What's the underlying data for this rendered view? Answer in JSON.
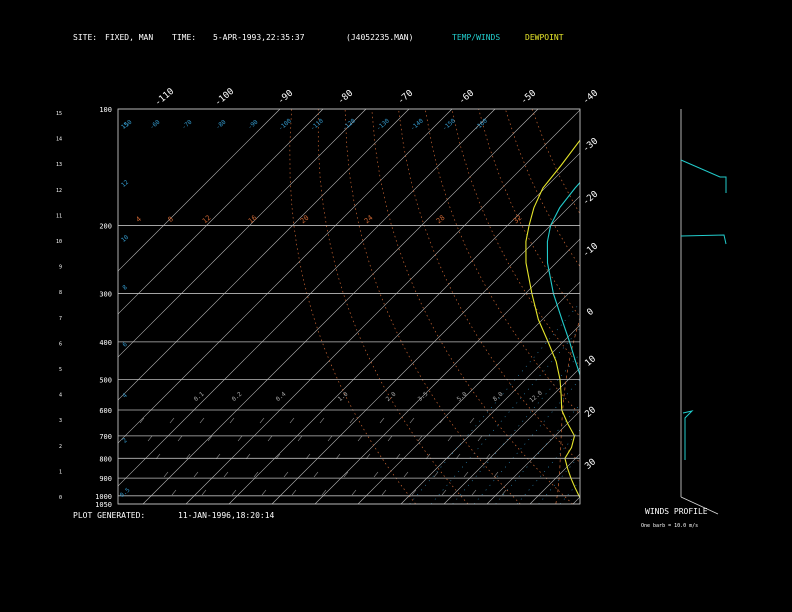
{
  "header": {
    "site_label": "SITE:",
    "site_value": "FIXED, MAN",
    "time_label": "TIME:",
    "time_value": "5-APR-1993,22:35:37",
    "file": "(J4052235.MAN)",
    "legend_temp": "TEMP/WINDS",
    "legend_dew": "DEWPOINT"
  },
  "footer": {
    "generated_label": "PLOT GENERATED:",
    "generated_value": "11-JAN-1996,18:20:14",
    "winds_title": "WINDS PROFILE",
    "winds_note": "One barb = 10.0 m/s"
  },
  "colors": {
    "temp": "#22cccc",
    "dew": "#e6e62a",
    "isobar": "#bbbbbb",
    "isotherm": "#bbbbbb",
    "dry_adiabat": "#cc6633",
    "moist_adiabat": "#cc6633",
    "mixing_ratio": "#3399cc",
    "wind": "#22cccc"
  },
  "chart_data": {
    "type": "line",
    "subtype": "skew-T log-P",
    "title": "",
    "pressure_ticks": [
      "100",
      "200",
      "300",
      "400",
      "500",
      "600",
      "700",
      "800",
      "900",
      "1000",
      "1050"
    ],
    "pressure_values": [
      100,
      200,
      300,
      400,
      500,
      600,
      700,
      800,
      900,
      1000,
      1050
    ],
    "height_ticks": [
      "0",
      "1",
      "2",
      "3",
      "4",
      "5",
      "6",
      "7",
      "8",
      "9",
      "10",
      "11",
      "12",
      "13",
      "14",
      "15"
    ],
    "temp_ticks_top": [
      "-110",
      "-100",
      "-90",
      "-80",
      "-70",
      "-60",
      "-50",
      "-40"
    ],
    "temp_ticks_right": [
      "-30",
      "-20",
      "-10",
      "0",
      "10",
      "20",
      "30"
    ],
    "temp_tick_values_top": [
      -110,
      -100,
      -90,
      -80,
      -70,
      -60,
      -50,
      -40
    ],
    "temp_tick_values_right": [
      -30,
      -20,
      -10,
      0,
      10,
      20,
      30
    ],
    "theta_labels": [
      "4",
      "8",
      "12",
      "16",
      "20",
      "24",
      "28",
      "32"
    ],
    "mixing_labels_top": [
      "-50",
      "-60",
      "-70",
      "-80",
      "-90",
      "-100",
      "-110",
      "-120",
      "-130",
      "-140",
      "-150",
      "-160"
    ],
    "mixing_labels_mid": [
      "0.1",
      "0.2",
      "0.4",
      "1.0",
      "2.0",
      "3.5",
      "5.0",
      "8.0",
      "12.0"
    ],
    "height_km_markers": [
      "15",
      "14",
      "12",
      "11",
      "10",
      "9",
      "8",
      "7",
      "6",
      "5",
      "4",
      "3",
      "2",
      "1",
      "0"
    ],
    "temperature": [
      {
        "p": 1040,
        "t": 18.0
      },
      {
        "p": 1000,
        "t": 15.5
      },
      {
        "p": 950,
        "t": 13.0
      },
      {
        "p": 900,
        "t": 10.5
      },
      {
        "p": 850,
        "t": 8.0
      },
      {
        "p": 800,
        "t": 5.0
      },
      {
        "p": 750,
        "t": 2.0
      },
      {
        "p": 700,
        "t": -1.0
      },
      {
        "p": 650,
        "t": -4.5
      },
      {
        "p": 600,
        "t": -8.0
      },
      {
        "p": 550,
        "t": -12.5
      },
      {
        "p": 500,
        "t": -17.0
      },
      {
        "p": 450,
        "t": -22.5
      },
      {
        "p": 400,
        "t": -28.5
      },
      {
        "p": 350,
        "t": -35.5
      },
      {
        "p": 300,
        "t": -43.5
      },
      {
        "p": 250,
        "t": -52.0
      },
      {
        "p": 220,
        "t": -57.0
      },
      {
        "p": 200,
        "t": -60.0
      },
      {
        "p": 180,
        "t": -62.0
      },
      {
        "p": 160,
        "t": -63.0
      },
      {
        "p": 140,
        "t": -63.5
      },
      {
        "p": 120,
        "t": -63.0
      },
      {
        "p": 105,
        "t": -63.0
      },
      {
        "p": 100,
        "t": -62.5
      }
    ],
    "dewpoint": [
      {
        "p": 1040,
        "t": 12.0
      },
      {
        "p": 1000,
        "t": 9.5
      },
      {
        "p": 950,
        "t": 6.5
      },
      {
        "p": 900,
        "t": 3.5
      },
      {
        "p": 850,
        "t": 0.5
      },
      {
        "p": 800,
        "t": -2.5
      },
      {
        "p": 750,
        "t": -3.5
      },
      {
        "p": 700,
        "t": -5.5
      },
      {
        "p": 650,
        "t": -10.0
      },
      {
        "p": 600,
        "t": -14.5
      },
      {
        "p": 550,
        "t": -18.0
      },
      {
        "p": 500,
        "t": -22.0
      },
      {
        "p": 450,
        "t": -27.0
      },
      {
        "p": 400,
        "t": -33.5
      },
      {
        "p": 350,
        "t": -41.0
      },
      {
        "p": 300,
        "t": -48.5
      },
      {
        "p": 250,
        "t": -57.0
      },
      {
        "p": 220,
        "t": -62.0
      },
      {
        "p": 200,
        "t": -65.0
      },
      {
        "p": 180,
        "t": -68.0
      },
      {
        "p": 160,
        "t": -70.5
      },
      {
        "p": 140,
        "t": -71.5
      },
      {
        "p": 120,
        "t": -73.0
      },
      {
        "p": 105,
        "t": -73.5
      },
      {
        "p": 100,
        "t": -73.5
      }
    ],
    "xlim": [
      -40,
      40
    ],
    "ylim": [
      1050,
      100
    ]
  }
}
